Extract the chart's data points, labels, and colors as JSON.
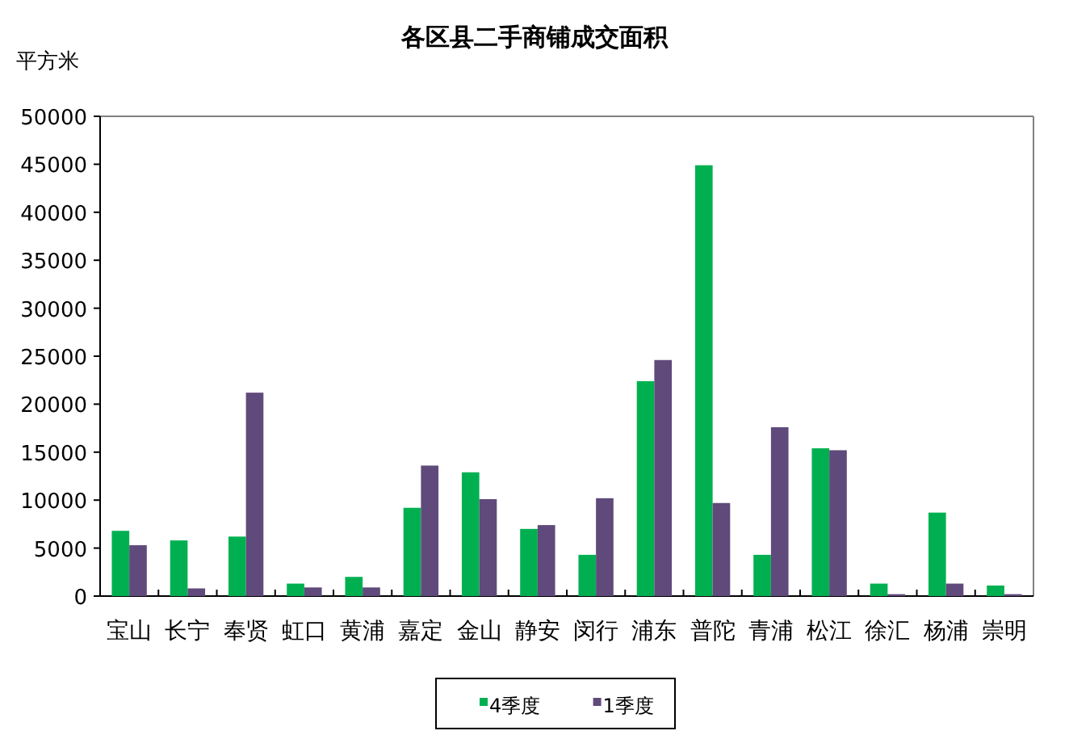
{
  "chart_data": {
    "type": "bar",
    "title": "各区县二手商铺成交面积",
    "ylabel": "平方米",
    "categories": [
      "宝山",
      "长宁",
      "奉贤",
      "虹口",
      "黄浦",
      "嘉定",
      "金山",
      "静安",
      "闵行",
      "浦东",
      "普陀",
      "青浦",
      "松江",
      "徐汇",
      "杨浦",
      "崇明"
    ],
    "series": [
      {
        "name": "4季度",
        "color": "#00b050",
        "values": [
          6800,
          5800,
          6200,
          1300,
          2000,
          9200,
          12900,
          7000,
          4300,
          22400,
          44900,
          4300,
          15400,
          1300,
          8700,
          1100
        ]
      },
      {
        "name": "1季度",
        "color": "#604a7b",
        "values": [
          5300,
          800,
          21200,
          900,
          900,
          13600,
          10100,
          7400,
          10200,
          24600,
          9700,
          17600,
          15200,
          200,
          1300,
          200
        ]
      }
    ],
    "ylim": [
      0,
      50000
    ],
    "yticks": [
      0,
      5000,
      10000,
      15000,
      20000,
      25000,
      30000,
      35000,
      40000,
      45000,
      50000
    ],
    "grid": false,
    "legend": "bottom"
  }
}
